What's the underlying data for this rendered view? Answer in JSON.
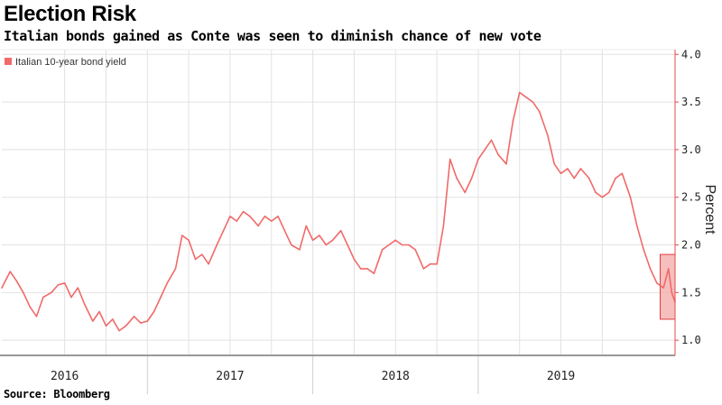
{
  "title": "Election Risk",
  "subtitle": "Italian bonds gained as Conte was seen to diminish chance of new vote",
  "source": "Source: Bloomberg",
  "colors": {
    "series": "#f06a6a",
    "highlight_fill": "#f4a8a8",
    "highlight_stroke": "#e03c3c",
    "axis": "#e94a4a",
    "grid": "#e2e2e2"
  },
  "chart_data": {
    "type": "line",
    "title": "Election Risk",
    "subtitle": "Italian bonds gained as Conte was seen to diminish chance of new vote",
    "ylabel": "Percent",
    "xlabel": "",
    "ylim": [
      0.85,
      4.05
    ],
    "yticks": [
      1.0,
      1.5,
      2.0,
      2.5,
      3.0,
      3.5,
      4.0
    ],
    "ytick_labels": [
      "1.0",
      "1.5",
      "2.0",
      "2.5",
      "3.0",
      "3.5",
      "4.0"
    ],
    "xlim": [
      2015.62,
      2019.69
    ],
    "x_tick_labels": [
      {
        "label": "2016",
        "at": 2016.0
      },
      {
        "label": "2017",
        "at": 2017.0
      },
      {
        "label": "2018",
        "at": 2018.0
      },
      {
        "label": "2019",
        "at": 2019.0
      }
    ],
    "year_boundaries": [
      2016.5,
      2017.5,
      2018.5
    ],
    "grid": true,
    "legend": {
      "placement": "top-left",
      "entries": [
        "Italian 10-year bond yield"
      ]
    },
    "series": [
      {
        "name": "Italian 10-year bond yield",
        "points": [
          [
            2015.62,
            1.55
          ],
          [
            2015.67,
            1.72
          ],
          [
            2015.71,
            1.62
          ],
          [
            2015.75,
            1.5
          ],
          [
            2015.79,
            1.35
          ],
          [
            2015.83,
            1.25
          ],
          [
            2015.87,
            1.45
          ],
          [
            2015.92,
            1.5
          ],
          [
            2015.96,
            1.58
          ],
          [
            2016.0,
            1.6
          ],
          [
            2016.04,
            1.45
          ],
          [
            2016.08,
            1.55
          ],
          [
            2016.12,
            1.38
          ],
          [
            2016.17,
            1.2
          ],
          [
            2016.21,
            1.3
          ],
          [
            2016.25,
            1.15
          ],
          [
            2016.29,
            1.22
          ],
          [
            2016.33,
            1.1
          ],
          [
            2016.37,
            1.15
          ],
          [
            2016.42,
            1.25
          ],
          [
            2016.46,
            1.18
          ],
          [
            2016.5,
            1.2
          ],
          [
            2016.54,
            1.3
          ],
          [
            2016.58,
            1.45
          ],
          [
            2016.62,
            1.6
          ],
          [
            2016.67,
            1.75
          ],
          [
            2016.71,
            2.1
          ],
          [
            2016.75,
            2.05
          ],
          [
            2016.79,
            1.85
          ],
          [
            2016.83,
            1.9
          ],
          [
            2016.87,
            1.8
          ],
          [
            2016.92,
            2.0
          ],
          [
            2016.96,
            2.15
          ],
          [
            2017.0,
            2.3
          ],
          [
            2017.04,
            2.25
          ],
          [
            2017.08,
            2.35
          ],
          [
            2017.12,
            2.3
          ],
          [
            2017.17,
            2.2
          ],
          [
            2017.21,
            2.3
          ],
          [
            2017.25,
            2.25
          ],
          [
            2017.29,
            2.3
          ],
          [
            2017.33,
            2.15
          ],
          [
            2017.37,
            2.0
          ],
          [
            2017.42,
            1.95
          ],
          [
            2017.46,
            2.2
          ],
          [
            2017.5,
            2.05
          ],
          [
            2017.54,
            2.1
          ],
          [
            2017.58,
            2.0
          ],
          [
            2017.62,
            2.05
          ],
          [
            2017.67,
            2.15
          ],
          [
            2017.71,
            2.0
          ],
          [
            2017.75,
            1.85
          ],
          [
            2017.79,
            1.75
          ],
          [
            2017.83,
            1.75
          ],
          [
            2017.87,
            1.7
          ],
          [
            2017.92,
            1.95
          ],
          [
            2017.96,
            2.0
          ],
          [
            2018.0,
            2.05
          ],
          [
            2018.04,
            2.0
          ],
          [
            2018.08,
            2.0
          ],
          [
            2018.12,
            1.95
          ],
          [
            2018.17,
            1.75
          ],
          [
            2018.21,
            1.8
          ],
          [
            2018.25,
            1.8
          ],
          [
            2018.29,
            2.2
          ],
          [
            2018.33,
            2.9
          ],
          [
            2018.37,
            2.7
          ],
          [
            2018.42,
            2.55
          ],
          [
            2018.46,
            2.7
          ],
          [
            2018.5,
            2.9
          ],
          [
            2018.54,
            3.0
          ],
          [
            2018.58,
            3.1
          ],
          [
            2018.62,
            2.95
          ],
          [
            2018.67,
            2.85
          ],
          [
            2018.71,
            3.3
          ],
          [
            2018.75,
            3.6
          ],
          [
            2018.79,
            3.55
          ],
          [
            2018.83,
            3.5
          ],
          [
            2018.87,
            3.4
          ],
          [
            2018.92,
            3.15
          ],
          [
            2018.96,
            2.85
          ],
          [
            2019.0,
            2.75
          ],
          [
            2019.04,
            2.8
          ],
          [
            2019.08,
            2.7
          ],
          [
            2019.12,
            2.8
          ],
          [
            2019.17,
            2.7
          ],
          [
            2019.21,
            2.55
          ],
          [
            2019.25,
            2.5
          ],
          [
            2019.29,
            2.55
          ],
          [
            2019.33,
            2.7
          ],
          [
            2019.37,
            2.75
          ],
          [
            2019.42,
            2.5
          ],
          [
            2019.46,
            2.2
          ],
          [
            2019.5,
            1.95
          ],
          [
            2019.54,
            1.75
          ],
          [
            2019.58,
            1.6
          ],
          [
            2019.62,
            1.55
          ],
          [
            2019.65,
            1.75
          ],
          [
            2019.67,
            1.5
          ],
          [
            2019.69,
            1.4
          ]
        ]
      }
    ],
    "highlight_region": {
      "x": [
        2019.6,
        2019.69
      ],
      "y": [
        1.22,
        1.9
      ]
    }
  }
}
